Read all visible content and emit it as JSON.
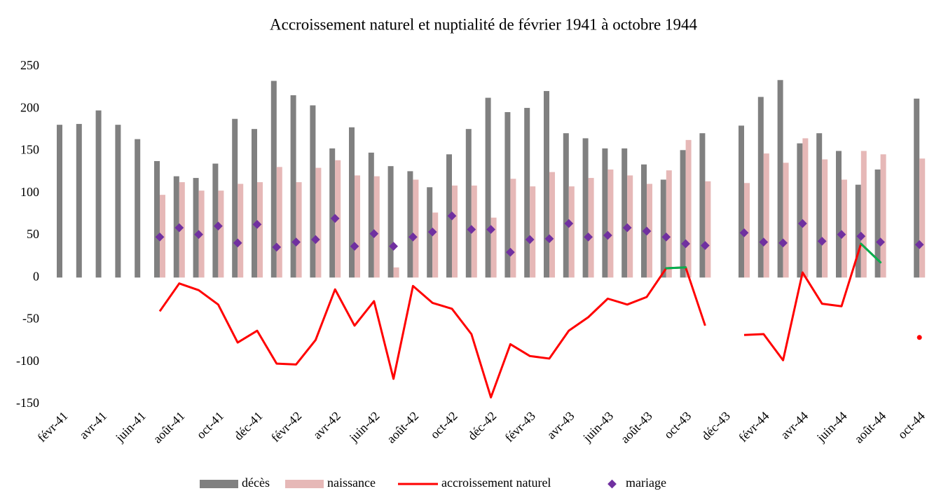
{
  "chart_data": {
    "type": "bar",
    "title": "Accroissement naturel et nuptialité de février 1941 à octobre 1944",
    "categories": [
      "févr-41",
      null,
      "avr-41",
      null,
      "juin-41",
      null,
      "août-41",
      null,
      "oct-41",
      null,
      "déc-41",
      null,
      "févr-42",
      null,
      "avr-42",
      null,
      "juin-42",
      null,
      "août-42",
      null,
      "oct-42",
      null,
      "déc-42",
      null,
      "févr-43",
      null,
      "avr-43",
      null,
      "juin-43",
      null,
      "août-43",
      null,
      "oct-43",
      null,
      "déc-43",
      null,
      "févr-44",
      null,
      "avr-44",
      null,
      "juin-44",
      null,
      "août-44",
      null,
      "oct-44"
    ],
    "ylim": [
      -150,
      250
    ],
    "yticks": [
      -150,
      -100,
      -50,
      0,
      50,
      100,
      150,
      200,
      250
    ],
    "grid": false,
    "legend": "bottom",
    "series": [
      {
        "name": "décès",
        "type": "bar",
        "color": "#808080",
        "values": [
          181,
          182,
          198,
          181,
          164,
          138,
          120,
          118,
          135,
          188,
          176,
          233,
          216,
          204,
          153,
          178,
          148,
          132,
          126,
          107,
          146,
          176,
          213,
          196,
          201,
          221,
          171,
          165,
          153,
          153,
          134,
          116,
          151,
          171,
          null,
          180,
          214,
          234,
          159,
          171,
          150,
          110,
          128,
          null,
          212
        ]
      },
      {
        "name": "naissance",
        "type": "bar",
        "color": "#e6b8b7",
        "values": [
          null,
          null,
          null,
          null,
          null,
          98,
          113,
          103,
          103,
          111,
          113,
          131,
          113,
          130,
          139,
          121,
          120,
          12,
          116,
          77,
          109,
          109,
          71,
          117,
          108,
          125,
          108,
          118,
          128,
          121,
          111,
          127,
          163,
          114,
          null,
          112,
          147,
          136,
          165,
          140,
          116,
          150,
          146,
          null,
          141
        ]
      },
      {
        "name": "accroissement naturel",
        "type": "line",
        "color": "#ff0000",
        "positive_color": "#00b050",
        "values": [
          null,
          null,
          null,
          null,
          null,
          -40,
          -7,
          -15,
          -32,
          -77,
          -63,
          -102,
          -103,
          -74,
          -14,
          -57,
          -28,
          -120,
          -10,
          -30,
          -37,
          -67,
          -142,
          -79,
          -93,
          -96,
          -63,
          -47,
          -25,
          -32,
          -23,
          11,
          12,
          -57,
          null,
          -68,
          -67,
          -98,
          6,
          -31,
          -34,
          40,
          18,
          null,
          -71
        ]
      },
      {
        "name": "mariage",
        "type": "scatter",
        "color": "#7030a0",
        "values": [
          null,
          null,
          null,
          null,
          null,
          48,
          59,
          51,
          61,
          41,
          63,
          36,
          42,
          45,
          70,
          37,
          52,
          37,
          48,
          54,
          73,
          57,
          57,
          30,
          45,
          46,
          64,
          48,
          50,
          59,
          55,
          48,
          40,
          38,
          null,
          53,
          42,
          41,
          64,
          43,
          51,
          49,
          42,
          null,
          39
        ]
      }
    ]
  }
}
